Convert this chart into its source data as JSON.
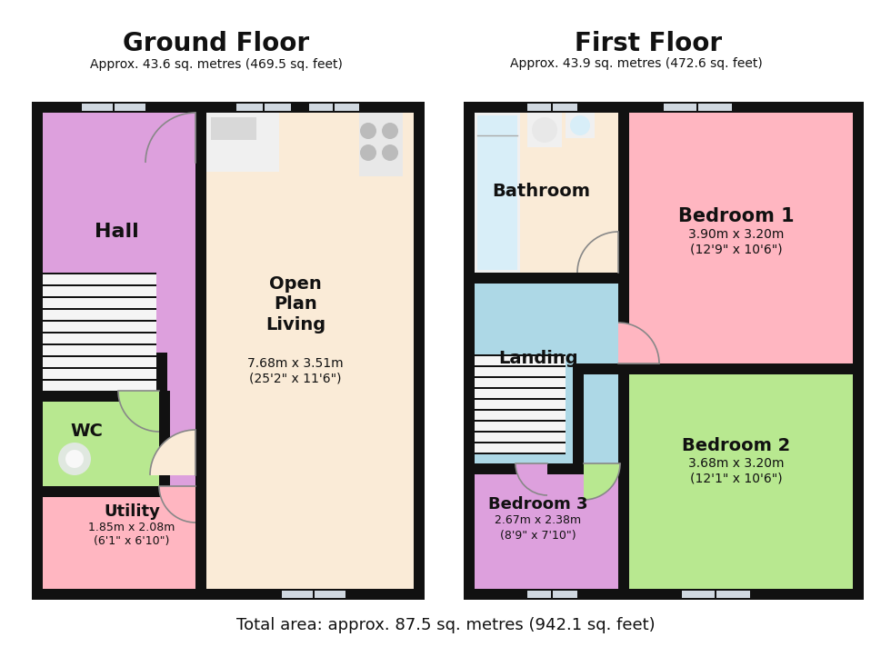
{
  "bg": "#ffffff",
  "wall": "#111111",
  "title_gf": "Ground Floor",
  "sub_gf": "Approx. 43.6 sq. metres (469.5 sq. feet)",
  "title_ff": "First Floor",
  "sub_ff": "Approx. 43.9 sq. metres (472.6 sq. feet)",
  "footer": "Total area: approx. 87.5 sq. metres (942.1 sq. feet)",
  "hall_c": "#dda0dd",
  "opl_c": "#faebd7",
  "wc_c": "#b8e890",
  "util_c": "#ffb6c1",
  "bath_c": "#faebd7",
  "bed1_c": "#ffb6c1",
  "land_c": "#add8e6",
  "bed2_c": "#b8e890",
  "bed3_c": "#dda0dd",
  "stair_bg": "#f5f5f5",
  "win_c": "#d0d8e0",
  "door_c": "#888888",
  "fix_c": "#e8e8e8",
  "fix_line": "#bbbbbb"
}
